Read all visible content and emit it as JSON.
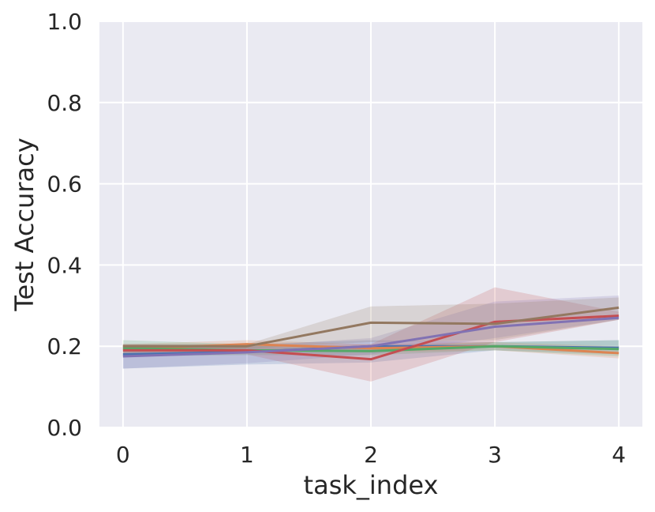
{
  "chart_data": {
    "type": "line",
    "title": "",
    "xlabel": "task_index",
    "ylabel": "Test Accuracy",
    "xlim": [
      -0.19,
      4.19
    ],
    "ylim": [
      0.0,
      1.0
    ],
    "grid": true,
    "background": "#eaeaf2",
    "x": [
      0,
      1,
      2,
      3,
      4
    ],
    "x_ticks": [
      "0",
      "1",
      "2",
      "3",
      "4"
    ],
    "y_ticks": [
      "0.0",
      "0.2",
      "0.4",
      "0.6",
      "0.8",
      "1.0"
    ],
    "series": [
      {
        "color": "#4c72b0",
        "values": [
          0.18,
          0.186,
          0.2,
          0.2,
          0.196
        ],
        "lower": [
          0.145,
          0.155,
          0.16,
          0.19,
          0.18
        ],
        "upper": [
          0.205,
          0.205,
          0.215,
          0.21,
          0.215
        ]
      },
      {
        "color": "#dd8452",
        "values": [
          0.193,
          0.205,
          0.195,
          0.2,
          0.183
        ],
        "lower": [
          0.18,
          0.19,
          0.185,
          0.19,
          0.17
        ],
        "upper": [
          0.205,
          0.215,
          0.205,
          0.21,
          0.2
        ]
      },
      {
        "color": "#55a868",
        "values": [
          0.195,
          0.19,
          0.188,
          0.2,
          0.193
        ],
        "lower": [
          0.175,
          0.178,
          0.178,
          0.19,
          0.175
        ],
        "upper": [
          0.215,
          0.205,
          0.2,
          0.21,
          0.215
        ]
      },
      {
        "color": "#c44e52",
        "values": [
          0.19,
          0.19,
          0.168,
          0.26,
          0.275
        ],
        "lower": [
          0.175,
          0.18,
          0.113,
          0.21,
          0.265
        ],
        "upper": [
          0.205,
          0.2,
          0.205,
          0.345,
          0.285
        ]
      },
      {
        "color": "#8172b3",
        "values": [
          0.175,
          0.185,
          0.2,
          0.248,
          0.27
        ],
        "lower": [
          0.145,
          0.158,
          0.18,
          0.22,
          0.265
        ],
        "upper": [
          0.195,
          0.2,
          0.22,
          0.31,
          0.325
        ]
      },
      {
        "color": "#937860",
        "values": [
          0.2,
          0.2,
          0.258,
          0.255,
          0.295
        ],
        "lower": [
          0.195,
          0.195,
          0.21,
          0.215,
          0.265
        ],
        "upper": [
          0.205,
          0.205,
          0.298,
          0.305,
          0.32
        ]
      }
    ]
  }
}
